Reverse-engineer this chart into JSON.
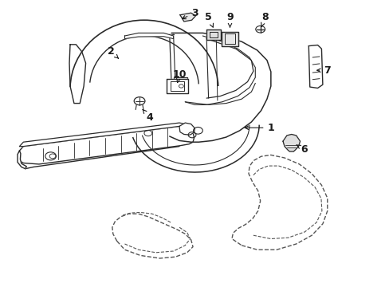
{
  "background_color": "#ffffff",
  "line_color": "#2a2a2a",
  "dashed_color": "#555555",
  "figsize": [
    4.89,
    3.6
  ],
  "dpi": 100,
  "labels": {
    "1": [
      0.695,
      0.555,
      0.62,
      0.555
    ],
    "2": [
      0.285,
      0.82,
      0.305,
      0.795
    ],
    "3": [
      0.5,
      0.955,
      0.46,
      0.93
    ],
    "4": [
      0.385,
      0.59,
      0.365,
      0.62
    ],
    "5": [
      0.535,
      0.94,
      0.55,
      0.895
    ],
    "6": [
      0.78,
      0.48,
      0.755,
      0.5
    ],
    "7": [
      0.84,
      0.755,
      0.805,
      0.755
    ],
    "8": [
      0.68,
      0.94,
      0.67,
      0.905
    ],
    "9": [
      0.59,
      0.94,
      0.59,
      0.895
    ],
    "10": [
      0.46,
      0.74,
      0.455,
      0.71
    ]
  }
}
